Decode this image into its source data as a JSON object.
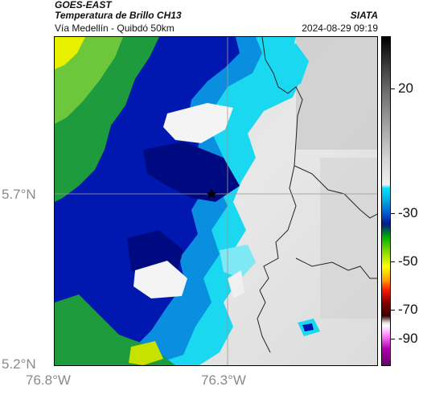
{
  "header": {
    "agency": "GOES-EAST",
    "title": "Temperatura de Brillo CH13",
    "subtitle": "Vía Medellín - Quibdó 50km",
    "organization": "SIATA",
    "datetime": "2024-08-29 09:19"
  },
  "axes": {
    "lat_labels": [
      "5.7°N",
      "5.2°N"
    ],
    "lon_labels": [
      "76.8°W",
      "76.3°W"
    ]
  },
  "colorbar": {
    "labels": [
      "20",
      "-30",
      "-50",
      "-70",
      "-90"
    ]
  },
  "colors": {
    "cold_blue": "#0000cc",
    "deep_blue": "#00008b",
    "cyan": "#00e5ff",
    "green": "#1e9b3c",
    "yellow": "#ffff00",
    "clear_gray": "#e0e0e0"
  },
  "icons": {
    "location_marker": "star-icon"
  }
}
